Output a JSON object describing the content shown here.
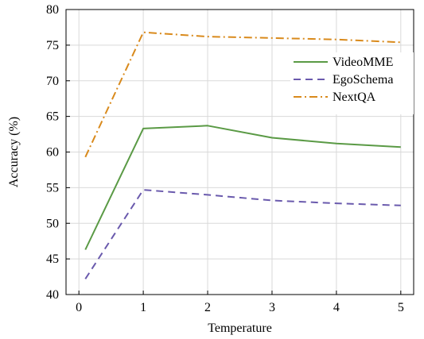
{
  "chart_data": {
    "type": "line",
    "title": "",
    "xlabel": "Temperature",
    "ylabel": "Accuracy (%)",
    "xlim": [
      -0.2,
      5.2
    ],
    "ylim": [
      40,
      80
    ],
    "xticks": [
      0,
      1,
      2,
      3,
      4,
      5
    ],
    "yticks": [
      40,
      45,
      50,
      55,
      60,
      65,
      70,
      75,
      80
    ],
    "grid": true,
    "legend_position": "top-right",
    "x": [
      0.1,
      1,
      2,
      3,
      4,
      5
    ],
    "series": [
      {
        "name": "VideoMME",
        "values": [
          46.3,
          63.3,
          63.7,
          62.0,
          61.2,
          60.7
        ],
        "color": "#5a9a45",
        "style": "solid"
      },
      {
        "name": "EgoSchema",
        "values": [
          42.2,
          54.7,
          54.0,
          53.2,
          52.8,
          52.5
        ],
        "color": "#6a5aad",
        "style": "dashed"
      },
      {
        "name": "NextQA",
        "values": [
          59.3,
          76.8,
          76.2,
          76.0,
          75.8,
          75.4
        ],
        "color": "#d98a1c",
        "style": "dashdot"
      }
    ]
  }
}
